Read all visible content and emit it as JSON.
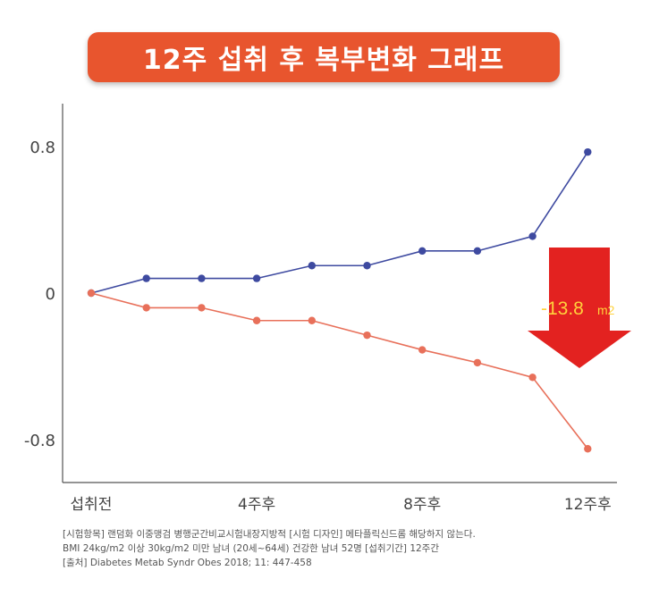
{
  "title": "12주 섭취 후 복부변화 그래프",
  "colors": {
    "banner": "#e8552e",
    "series_a": "#3e4aa0",
    "series_b": "#e8705a",
    "arrow": "#e32220",
    "callout_text": "#ffd23c"
  },
  "callout": {
    "value": "-13.8",
    "unit": "m2"
  },
  "footnotes": [
    "[시험항목] 랜덤화 이중맹검 병행군간비교시험내장지방적 [시험 디자인] 메타플릭신드롬 해당하지 않는다.",
    "BMI 24kg/m2 이상 30kg/m2 미만 남녀 (20세~64세) 건강한 남녀 52명 [섭취기간] 12주간",
    "[출처] Diabetes Metab Syndr Obes 2018; 11: 447-458"
  ],
  "chart_data": {
    "type": "line",
    "title": "12주 섭취 후 복부변화 그래프",
    "xlabel": "",
    "ylabel": "",
    "x": [
      0,
      1,
      2,
      3,
      4,
      5,
      6,
      7,
      8,
      9
    ],
    "x_tick_labels": [
      {
        "x": 0,
        "label": "섭취전"
      },
      {
        "x": 3,
        "label": "4주후"
      },
      {
        "x": 6,
        "label": "8주후"
      },
      {
        "x": 9,
        "label": "12주후"
      }
    ],
    "y_ticks": [
      {
        "value": 0.8,
        "label": "0.8"
      },
      {
        "value": 0,
        "label": "0"
      },
      {
        "value": -0.8,
        "label": "-0.8"
      }
    ],
    "ylim": [
      -1.14,
      1.14
    ],
    "series": [
      {
        "values": [
          0,
          0.08,
          0.08,
          0.08,
          0.15,
          0.15,
          0.23,
          0.23,
          0.31,
          0.77
        ]
      },
      {
        "values": [
          0,
          -0.08,
          -0.08,
          -0.15,
          -0.15,
          -0.23,
          -0.31,
          -0.38,
          -0.46,
          -0.85
        ]
      }
    ],
    "grid": false,
    "annotations": [
      "-13.8m2"
    ]
  }
}
